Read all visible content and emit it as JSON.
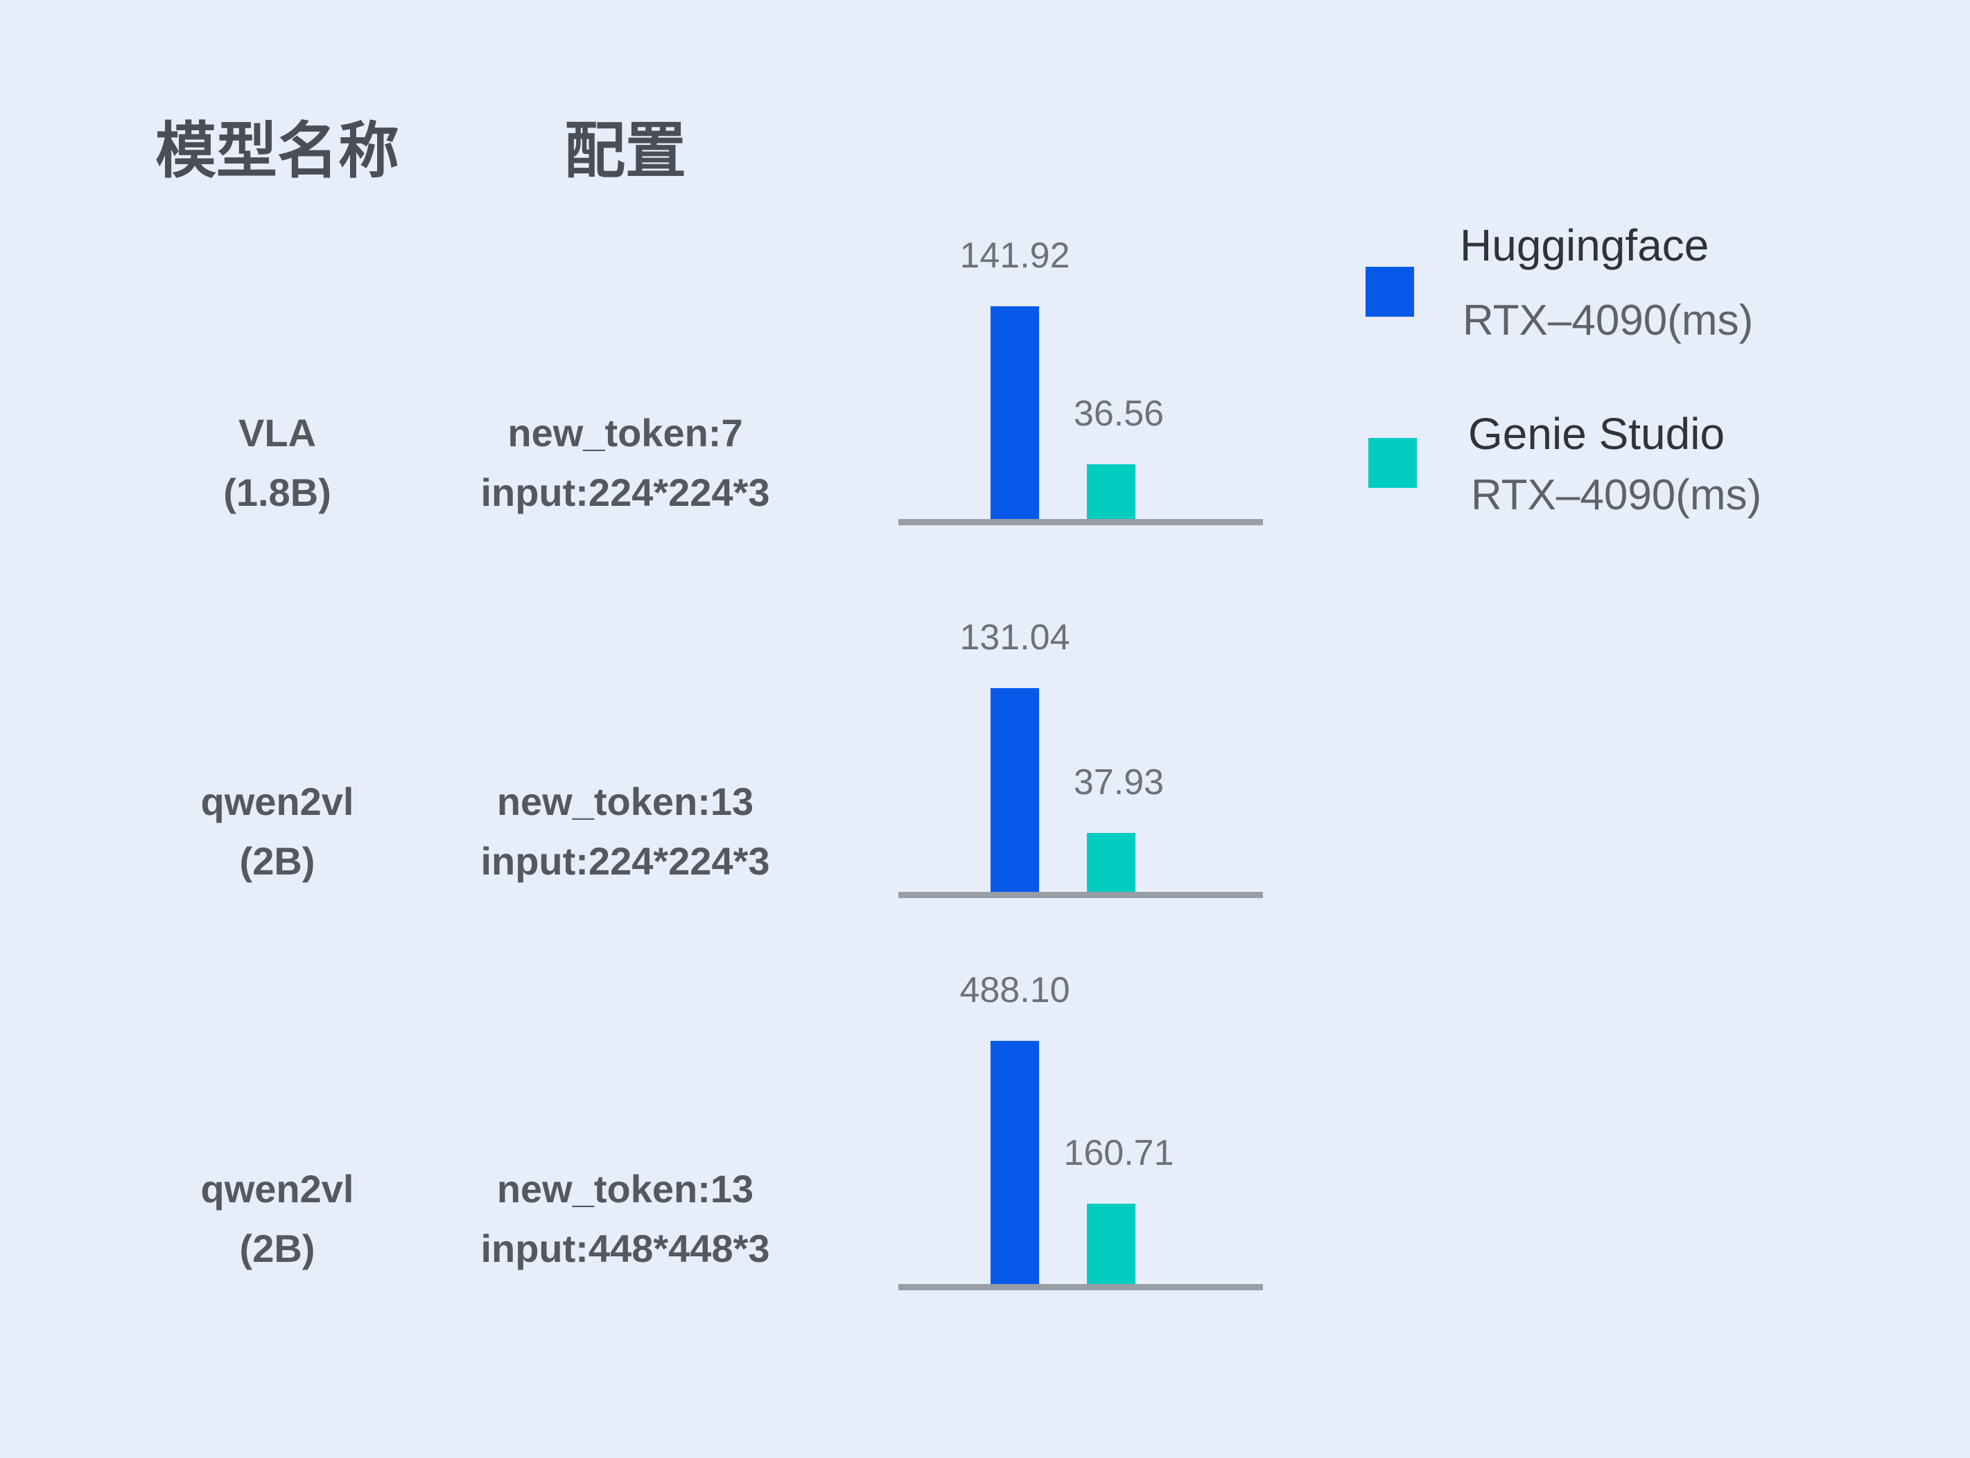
{
  "headers": {
    "model": "模型名称",
    "config": "配置"
  },
  "rows": [
    {
      "model_name": "VLA",
      "model_size": "(1.8B)",
      "config_line1": "new_token:7",
      "config_line2": "input:224*224*3",
      "huggingface_ms": "141.92",
      "genie_studio_ms": "36.56"
    },
    {
      "model_name": "qwen2vl",
      "model_size": "(2B)",
      "config_line1": "new_token:13",
      "config_line2": "input:224*224*3",
      "huggingface_ms": "131.04",
      "genie_studio_ms": "37.93"
    },
    {
      "model_name": "qwen2vl",
      "model_size": "(2B)",
      "config_line1": "new_token:13",
      "config_line2": "input:448*448*3",
      "huggingface_ms": "488.10",
      "genie_studio_ms": "160.71"
    }
  ],
  "legend": [
    {
      "name": "Huggingface",
      "device": "RTX–4090(ms)",
      "color": "#0659E8"
    },
    {
      "name": "Genie Studio",
      "device": "RTX–4090(ms)",
      "color": "#00CCC0"
    }
  ],
  "chart_data": {
    "type": "bar",
    "title": "",
    "orientation": "vertical",
    "categories": [
      "VLA (1.8B) | new_token:7 | input:224*224*3",
      "qwen2vl (2B) | new_token:13 | input:224*224*3",
      "qwen2vl (2B) | new_token:13 | input:448*448*3"
    ],
    "series": [
      {
        "name": "Huggingface RTX–4090(ms)",
        "color": "#0659E8",
        "values": [
          141.92,
          131.04,
          488.1
        ]
      },
      {
        "name": "Genie Studio RTX–4090(ms)",
        "color": "#00CCC0",
        "values": [
          36.56,
          37.93,
          160.71
        ]
      }
    ],
    "value_labels": [
      [
        "141.92",
        "36.56"
      ],
      [
        "131.04",
        "37.93"
      ],
      [
        "488.10",
        "160.71"
      ]
    ],
    "unit": "ms",
    "layout": {
      "grid": false,
      "legend_position": "top-right",
      "note": "three independent mini bar charts, one per row, each pair scaled to its own row maximum; gray baseline under each pair"
    },
    "baseline_color": "#989DA6",
    "background_color": "#E8EDFA"
  }
}
